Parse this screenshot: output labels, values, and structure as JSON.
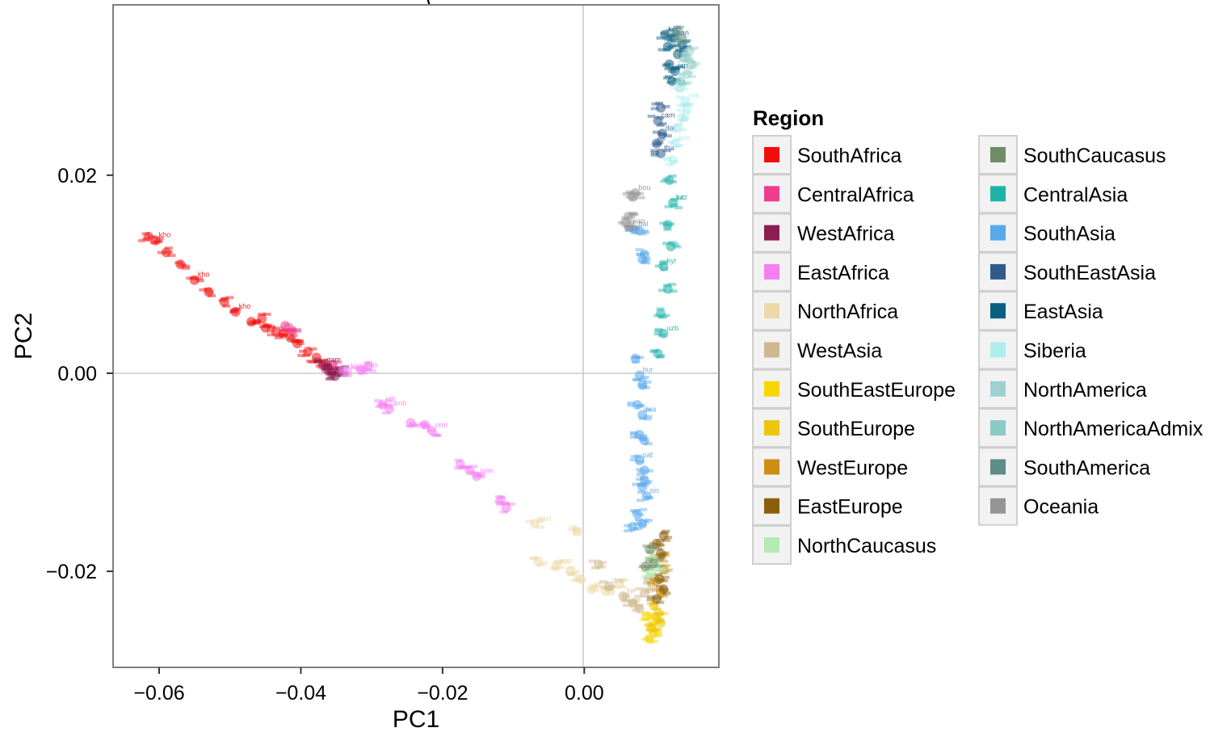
{
  "chart_data": {
    "type": "scatter",
    "title": "(",
    "xlabel": "PC1",
    "ylabel": "PC2",
    "xlim": [
      -0.0665,
      0.019
    ],
    "ylim": [
      -0.0297,
      0.0372
    ],
    "xticks": [
      -0.06,
      -0.04,
      -0.02,
      0.0
    ],
    "xtick_labels": [
      "−0.06",
      "−0.04",
      "−0.02",
      "0.00"
    ],
    "yticks": [
      0.02,
      0.0,
      -0.02
    ],
    "ytick_labels": [
      "0.02",
      "0.00",
      "−0.02"
    ],
    "grid": true,
    "reference_lines": {
      "x": 0,
      "y": 0
    },
    "marker": "population-code text labels",
    "legend": {
      "title": "Region",
      "placement": "right",
      "columns": 2
    },
    "series": [
      {
        "name": "SouthAfrica",
        "color": "#f20d0d",
        "points": [
          [
            -0.0615,
            0.0138
          ],
          [
            -0.0605,
            0.0134
          ],
          [
            -0.059,
            0.0122
          ],
          [
            -0.057,
            0.011
          ],
          [
            -0.055,
            0.0094
          ],
          [
            -0.053,
            0.0082
          ],
          [
            -0.0508,
            0.0072
          ],
          [
            -0.0492,
            0.0062
          ],
          [
            -0.047,
            0.0052
          ],
          [
            -0.045,
            0.0046
          ],
          [
            -0.0435,
            0.0042
          ],
          [
            -0.0425,
            0.004
          ],
          [
            -0.0415,
            0.0036
          ],
          [
            -0.0405,
            0.003
          ],
          [
            -0.039,
            0.0022
          ],
          [
            -0.0378,
            0.0016
          ],
          [
            -0.0365,
            0.001
          ],
          [
            -0.0455,
            0.0055
          ]
        ],
        "labels": [
          "kho",
          "kho",
          "kho"
        ]
      },
      {
        "name": "CentralAfrica",
        "color": "#ee3d8c",
        "points": [
          [
            -0.0422,
            0.0048
          ],
          [
            -0.0412,
            0.0043
          ],
          [
            -0.0365,
            0.0004
          ],
          [
            -0.0355,
            0.0008
          ]
        ]
      },
      {
        "name": "WestAfrica",
        "color": "#8b1d52",
        "points": [
          [
            -0.0362,
            0.0005
          ],
          [
            -0.0357,
            0.0
          ],
          [
            -0.0352,
            -0.0003
          ],
          [
            -0.0346,
            0.0002
          ],
          [
            -0.0368,
            0.0008
          ]
        ],
        "labels": [
          "yor",
          "gam"
        ]
      },
      {
        "name": "EastAfrica",
        "color": "#f57ef2",
        "points": [
          [
            -0.0335,
            0.0002
          ],
          [
            -0.0315,
            0.0003
          ],
          [
            -0.0305,
            0.0007
          ],
          [
            -0.0285,
            -0.0032
          ],
          [
            -0.0275,
            -0.0036
          ],
          [
            -0.0245,
            -0.005
          ],
          [
            -0.0225,
            -0.0052
          ],
          [
            -0.0215,
            -0.0058
          ],
          [
            -0.0175,
            -0.0092
          ],
          [
            -0.0162,
            -0.0098
          ],
          [
            -0.0152,
            -0.0104
          ],
          [
            -0.0118,
            -0.0128
          ],
          [
            -0.011,
            -0.0136
          ]
        ],
        "labels": [
          "mas",
          "amh",
          "orm",
          "som",
          "som",
          "eth"
        ]
      },
      {
        "name": "NorthAfrica",
        "color": "#eed8a8",
        "points": [
          [
            -0.0065,
            -0.019
          ],
          [
            -0.004,
            -0.0195
          ],
          [
            -0.002,
            -0.02
          ],
          [
            -0.0005,
            -0.0208
          ],
          [
            0.001,
            -0.0218
          ],
          [
            0.003,
            -0.022
          ],
          [
            0.005,
            -0.0212
          ],
          [
            -0.007,
            -0.0152
          ],
          [
            -0.001,
            -0.016
          ]
        ],
        "labels": [
          "yem",
          "yem",
          "moz",
          "egy"
        ]
      },
      {
        "name": "WestAsia",
        "color": "#cdb88f",
        "points": [
          [
            0.0035,
            -0.0215
          ],
          [
            0.0055,
            -0.0225
          ],
          [
            0.0068,
            -0.0232
          ],
          [
            0.0078,
            -0.0238
          ],
          [
            0.0085,
            -0.0222
          ],
          [
            0.009,
            -0.0208
          ],
          [
            0.002,
            -0.0193
          ]
        ],
        "labels": [
          "syr",
          "pal",
          "dru"
        ]
      },
      {
        "name": "SouthEastEurope",
        "color": "#f7d600",
        "points": [
          [
            0.0088,
            -0.0245
          ],
          [
            0.0094,
            -0.0255
          ],
          [
            0.0098,
            -0.0262
          ],
          [
            0.0102,
            -0.0248
          ],
          [
            0.0092,
            -0.0268
          ]
        ]
      },
      {
        "name": "SouthEurope",
        "color": "#ecc50c",
        "points": [
          [
            0.0098,
            -0.0235
          ],
          [
            0.0105,
            -0.0242
          ],
          [
            0.0095,
            -0.0258
          ],
          [
            0.0108,
            -0.0252
          ]
        ]
      },
      {
        "name": "WestEurope",
        "color": "#cc8e14",
        "points": [
          [
            0.0102,
            -0.021
          ],
          [
            0.0108,
            -0.0222
          ],
          [
            0.0112,
            -0.0198
          ],
          [
            0.0106,
            -0.0186
          ]
        ]
      },
      {
        "name": "EastEurope",
        "color": "#8b5f0a",
        "points": [
          [
            0.0102,
            -0.0172
          ],
          [
            0.0108,
            -0.0182
          ],
          [
            0.0112,
            -0.0164
          ],
          [
            0.0106,
            -0.0208
          ],
          [
            0.0112,
            -0.0218
          ],
          [
            0.0102,
            -0.0228
          ]
        ]
      },
      {
        "name": "NorthCaucasus",
        "color": "#b3ebb3",
        "points": [
          [
            0.0098,
            -0.0188
          ],
          [
            0.0104,
            -0.0196
          ],
          [
            0.0094,
            -0.0202
          ]
        ]
      },
      {
        "name": "SouthCaucasus",
        "color": "#6f8d66",
        "points": [
          [
            0.0092,
            -0.0178
          ],
          [
            0.0098,
            -0.0192
          ],
          [
            0.0086,
            -0.0195
          ]
        ]
      },
      {
        "name": "CentralAsia",
        "color": "#1fb3a8",
        "points": [
          [
            0.012,
            0.0195
          ],
          [
            0.0125,
            0.0172
          ],
          [
            0.0118,
            0.015
          ],
          [
            0.0122,
            0.0128
          ],
          [
            0.0112,
            0.0108
          ],
          [
            0.0118,
            0.0085
          ],
          [
            0.0108,
            0.006
          ],
          [
            0.0112,
            0.004
          ],
          [
            0.0104,
            0.002
          ]
        ],
        "labels": [
          "kaz",
          "kyr",
          "uzb",
          "tur"
        ]
      },
      {
        "name": "SouthAsia",
        "color": "#58a8ec",
        "points": [
          [
            0.0072,
            0.0015
          ],
          [
            0.0078,
            -0.0002
          ],
          [
            0.0082,
            -0.0012
          ],
          [
            0.0075,
            -0.0032
          ],
          [
            0.0082,
            -0.0042
          ],
          [
            0.0078,
            -0.0062
          ],
          [
            0.0085,
            -0.0068
          ],
          [
            0.0078,
            -0.0088
          ],
          [
            0.0085,
            -0.0098
          ],
          [
            0.0082,
            -0.0115
          ],
          [
            0.0088,
            -0.0124
          ],
          [
            0.0075,
            -0.0142
          ],
          [
            0.0082,
            -0.0152
          ],
          [
            0.0068,
            -0.0155
          ],
          [
            0.0085,
            -0.0108
          ],
          [
            0.0078,
            0.0144
          ],
          [
            0.0072,
            0.0145
          ],
          [
            0.0085,
            0.012
          ],
          [
            0.0082,
            0.0115
          ]
        ],
        "labels": [
          "bur",
          "bra",
          "pat",
          "sin",
          "mak",
          "bal"
        ]
      },
      {
        "name": "SouthEastAsia",
        "color": "#2f5b8b",
        "points": [
          [
            0.0108,
            0.0268
          ],
          [
            0.0104,
            0.0255
          ],
          [
            0.011,
            0.0242
          ],
          [
            0.0102,
            0.0232
          ],
          [
            0.0108,
            0.0222
          ]
        ],
        "labels": [
          "cam",
          "tha",
          "dai"
        ]
      },
      {
        "name": "EastAsia",
        "color": "#0b6080",
        "points": [
          [
            0.0118,
            0.033
          ],
          [
            0.0126,
            0.0338
          ],
          [
            0.0132,
            0.0322
          ],
          [
            0.012,
            0.0312
          ],
          [
            0.0128,
            0.0305
          ],
          [
            0.0124,
            0.0295
          ],
          [
            0.0138,
            0.0332
          ],
          [
            0.0114,
            0.0342
          ]
        ],
        "labels": [
          "han",
          "jap",
          "kor"
        ]
      },
      {
        "name": "Siberia",
        "color": "#b0ecee",
        "points": [
          [
            0.0135,
            0.0288
          ],
          [
            0.0142,
            0.0275
          ],
          [
            0.0138,
            0.0258
          ],
          [
            0.0132,
            0.0248
          ],
          [
            0.0128,
            0.0232
          ],
          [
            0.0145,
            0.0268
          ],
          [
            0.0125,
            0.0215
          ]
        ],
        "labels": [
          "yak",
          "eve",
          "kor"
        ]
      },
      {
        "name": "NorthAmerica",
        "color": "#9ed1d1",
        "points": [
          [
            0.0148,
            0.0325
          ],
          [
            0.0152,
            0.0312
          ],
          [
            0.0145,
            0.0302
          ]
        ]
      },
      {
        "name": "NorthAmericaAdmix",
        "color": "#8ccac6",
        "points": [
          [
            0.0142,
            0.0318
          ],
          [
            0.0136,
            0.0295
          ]
        ]
      },
      {
        "name": "SouthAmerica",
        "color": "#5e8c86",
        "points": [
          [
            0.0138,
            0.0338
          ],
          [
            0.0132,
            0.0345
          ]
        ]
      },
      {
        "name": "Oceania",
        "color": "#959595",
        "points": [
          [
            0.0068,
            0.0178
          ],
          [
            0.0072,
            0.0182
          ],
          [
            0.0062,
            0.0158
          ],
          [
            0.0058,
            0.0152
          ],
          [
            0.0064,
            0.0148
          ]
        ],
        "labels": [
          "bou",
          "pap"
        ]
      }
    ]
  }
}
